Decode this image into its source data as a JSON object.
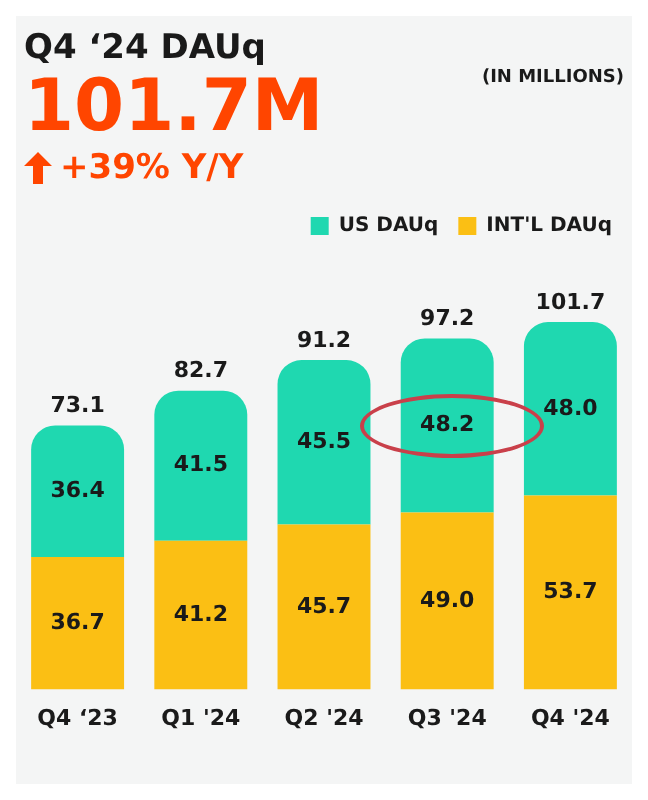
{
  "chart_data": {
    "type": "bar",
    "title": "Q4 ‘24 DAUq",
    "subtitle": "101.7M",
    "annotations": [
      "+39% Y/Y",
      "(IN MILLIONS)"
    ],
    "categories": [
      "Q4 ‘23",
      "Q1 '24",
      "Q2 '24",
      "Q3 '24",
      "Q4 '24"
    ],
    "series": [
      {
        "name": "INT'L DAUq",
        "color": "#fbbf14",
        "values": [
          36.7,
          41.2,
          45.7,
          49.0,
          53.7
        ],
        "value_labels": [
          "36.7",
          "41.2",
          "45.7",
          "49.0",
          "53.7"
        ]
      },
      {
        "name": "US DAUq",
        "color": "#1fd8b0",
        "values": [
          36.4,
          41.5,
          45.5,
          48.2,
          48.0
        ],
        "value_labels": [
          "36.4",
          "41.5",
          "45.5",
          "48.2",
          "48.0"
        ]
      }
    ],
    "stacked": true,
    "totals": [
      "73.1",
      "82.7",
      "91.2",
      "97.2",
      "101.7"
    ],
    "legend": "top right",
    "grid": false,
    "tick_labels": "x"
  }
}
